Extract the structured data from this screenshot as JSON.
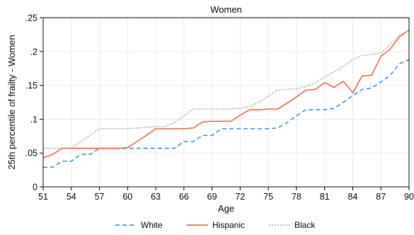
{
  "chart_data": {
    "type": "line",
    "title": "Women",
    "xlabel": "Age",
    "ylabel": "25th percentile of frailty - Women",
    "xlim": [
      51,
      90
    ],
    "ylim": [
      0,
      0.25
    ],
    "x_ticks": [
      51,
      54,
      57,
      60,
      63,
      66,
      69,
      72,
      75,
      78,
      81,
      84,
      87,
      90
    ],
    "y_ticks": [
      0,
      0.05,
      0.1,
      0.15,
      0.2,
      0.25
    ],
    "y_tick_labels": [
      "0",
      ".05",
      ".1",
      ".15",
      ".2",
      ".25"
    ],
    "grid": true,
    "legend_position": "bottom",
    "x": [
      51,
      52,
      53,
      54,
      55,
      56,
      57,
      58,
      59,
      60,
      61,
      62,
      63,
      64,
      65,
      66,
      67,
      68,
      69,
      70,
      71,
      72,
      73,
      74,
      75,
      76,
      77,
      78,
      79,
      80,
      81,
      82,
      83,
      84,
      85,
      86,
      87,
      88,
      89,
      90
    ],
    "series": [
      {
        "name": "White",
        "color": "#1a85e6",
        "dash": "dashed",
        "values": [
          0.029,
          0.029,
          0.038,
          0.038,
          0.048,
          0.048,
          0.057,
          0.057,
          0.057,
          0.057,
          0.057,
          0.057,
          0.057,
          0.057,
          0.057,
          0.067,
          0.067,
          0.076,
          0.076,
          0.086,
          0.086,
          0.086,
          0.086,
          0.086,
          0.086,
          0.087,
          0.095,
          0.105,
          0.114,
          0.114,
          0.114,
          0.116,
          0.125,
          0.135,
          0.144,
          0.146,
          0.155,
          0.165,
          0.182,
          0.188
        ]
      },
      {
        "name": "Hispanic",
        "color": "#f0542a",
        "dash": "solid",
        "values": [
          0.043,
          0.048,
          0.057,
          0.057,
          0.057,
          0.057,
          0.057,
          0.057,
          0.057,
          0.058,
          0.067,
          0.076,
          0.086,
          0.086,
          0.086,
          0.086,
          0.087,
          0.096,
          0.097,
          0.097,
          0.097,
          0.106,
          0.114,
          0.114,
          0.115,
          0.115,
          0.124,
          0.133,
          0.143,
          0.144,
          0.154,
          0.147,
          0.156,
          0.139,
          0.164,
          0.165,
          0.193,
          0.204,
          0.222,
          0.232
        ]
      },
      {
        "name": "Black",
        "color": "#a3a3a3",
        "dash": "dotted",
        "values": [
          0.057,
          0.057,
          0.057,
          0.057,
          0.067,
          0.076,
          0.086,
          0.086,
          0.086,
          0.086,
          0.087,
          0.088,
          0.089,
          0.089,
          0.095,
          0.105,
          0.115,
          0.115,
          0.115,
          0.115,
          0.115,
          0.116,
          0.119,
          0.125,
          0.134,
          0.143,
          0.144,
          0.145,
          0.148,
          0.154,
          0.162,
          0.17,
          0.178,
          0.188,
          0.194,
          0.196,
          0.198,
          0.21,
          0.225,
          0.231
        ]
      }
    ]
  }
}
